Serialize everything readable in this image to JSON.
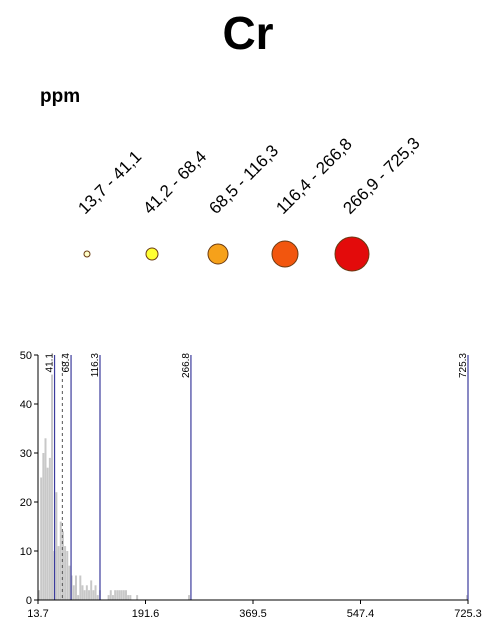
{
  "title": "Cr",
  "unit_label": "ppm",
  "legend": {
    "classes": [
      {
        "label": "13,7 - 41,1",
        "color": "#ffffc8"
      },
      {
        "label": "41,2 - 68,4",
        "color": "#ffff33"
      },
      {
        "label": "68,5 - 116,3",
        "color": "#f6a11a"
      },
      {
        "label": "116,4 - 266,8",
        "color": "#f2560e"
      },
      {
        "label": "266,9 - 725,3",
        "color": "#e30b0b"
      }
    ]
  },
  "chart_data": {
    "type": "bar",
    "xlim": [
      13.7,
      725.3
    ],
    "ylim": [
      0,
      50
    ],
    "x_ticks": [
      "13.7",
      "191.6",
      "369.5",
      "547.4",
      "725.3"
    ],
    "y_ticks": [
      "0",
      "10",
      "20",
      "30",
      "40",
      "50"
    ],
    "class_breaks": [
      "41.1",
      "68.4",
      "116.3",
      "266.8",
      "725.3"
    ],
    "mean_line": 54,
    "bin_width": 3.6,
    "bins_x": [
      13.7,
      17.3,
      20.9,
      24.5,
      28.1,
      31.7,
      35.3,
      38.9,
      42.5,
      46.1,
      49.7,
      53.3,
      56.9,
      60.5,
      64.1,
      67.7,
      71.3,
      74.9,
      78.5,
      82.1,
      85.7,
      89.3,
      92.9,
      96.5,
      100.1,
      103.7,
      107.3,
      110.9,
      114.5,
      128.9,
      132.5,
      136.1,
      139.7,
      143.3,
      146.9,
      150.5,
      154.1,
      157.7,
      161.3,
      164.9,
      176.1,
      262.0,
      722.0
    ],
    "counts": [
      2,
      25,
      30,
      33,
      27,
      29,
      46,
      10,
      22,
      11,
      16,
      14,
      11,
      10,
      7,
      5,
      3,
      5,
      1,
      5,
      3,
      2,
      3,
      2,
      4,
      2,
      3,
      1,
      2,
      1,
      2,
      1,
      2,
      2,
      2,
      2,
      2,
      2,
      1,
      1,
      1,
      1,
      1
    ],
    "bar_color": "#c8c8c8",
    "break_line_color": "#3b3b9c"
  }
}
